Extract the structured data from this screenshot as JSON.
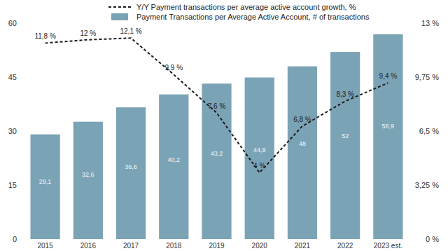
{
  "chart_data": {
    "type": "bar",
    "categories": [
      "2015",
      "2016",
      "2017",
      "2018",
      "2019",
      "2020",
      "2021",
      "2022",
      "2023 est."
    ],
    "series": [
      {
        "name": "Y/Y Payment transactions per average active account growth, %",
        "type": "line",
        "axis": "y2",
        "color": "#1a1a1a",
        "line_style": "dashed",
        "values": [
          11.8,
          12,
          12.1,
          9.9,
          7.6,
          4,
          6.8,
          8.3,
          9.4
        ],
        "value_labels": [
          "11,8 %",
          "12 %",
          "12,1 %",
          "9,9 %",
          "7,6 %",
          "4 %",
          "6,8 %",
          "8,3 %",
          "9,4 %"
        ]
      },
      {
        "name": "Payment Transactions per Average Active Account, # of transactions",
        "type": "bar",
        "color": "#7ba3b6",
        "values": [
          29.1,
          32.6,
          36.6,
          40.2,
          43.2,
          44.9,
          48,
          52,
          56.9
        ],
        "value_labels": [
          "29,1",
          "32,6",
          "36,6",
          "40,2",
          "43,2",
          "44,9",
          "48",
          "52",
          "56,9"
        ]
      }
    ],
    "ylim": [
      0,
      60
    ],
    "yticks": [
      0,
      15,
      30,
      45,
      60
    ],
    "y2lim": [
      0,
      13
    ],
    "y2ticks": [
      {
        "value": 0,
        "label": "0 %"
      },
      {
        "value": 3.25,
        "label": "3,25 %"
      },
      {
        "value": 6.5,
        "label": "6,5 %"
      },
      {
        "value": 9.75,
        "label": "9,75 %"
      },
      {
        "value": 13,
        "label": "13 %"
      }
    ],
    "grid": false,
    "legend": "top",
    "data_labels": true
  }
}
